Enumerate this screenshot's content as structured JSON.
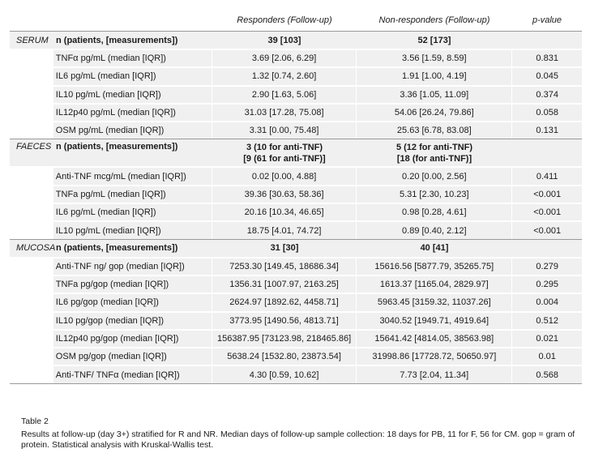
{
  "header": {
    "col2": "Responders (Follow-up)",
    "col3": "Non-responders (Follow-up)",
    "col4": "p-value"
  },
  "groups": [
    {
      "name": "SERUM",
      "n_label": "n (patients, [measurements])",
      "n_resp": [
        "39 [103]"
      ],
      "n_nonresp": [
        "52 [173]"
      ],
      "rows": [
        {
          "label": "TNFα pg/mL (median [IQR])",
          "resp": "3.69 [2.06, 6.29]",
          "nonresp": "3.56 [1.59, 8.59]",
          "p": "0.831"
        },
        {
          "label": "IL6 pg/mL (median [IQR])",
          "resp": "1.32 [0.74, 2.60]",
          "nonresp": "1.91 [1.00, 4.19]",
          "p": "0.045"
        },
        {
          "label": "IL10 pg/mL (median [IQR])",
          "resp": "2.90 [1.63, 5.06]",
          "nonresp": "3.36 [1.05, 11.09]",
          "p": "0.374"
        },
        {
          "label": "IL12p40 pg/mL (median [IQR])",
          "resp": "31.03 [17.28, 75.08]",
          "nonresp": "54.06 [26.24, 79.86]",
          "p": "0.058"
        },
        {
          "label": "OSM pg/mL (median [IQR])",
          "resp": "3.31 [0.00, 75.48]",
          "nonresp": "25.63 [6.78, 83.08]",
          "p": "0.131"
        }
      ]
    },
    {
      "name": "FAECES",
      "n_label": "n (patients, [measurements])",
      "n_resp": [
        "3 (10 for anti-TNF)",
        "[9 (61 for anti-TNF)]"
      ],
      "n_nonresp": [
        "5 (12 for anti-TNF)",
        "[18 (for anti-TNF)]"
      ],
      "rows": [
        {
          "label": "Anti-TNF mcg/mL (median [IQR])",
          "resp": "0.02 [0.00, 4.88]",
          "nonresp": "0.20 [0.00, 2.56]",
          "p": "0.411"
        },
        {
          "label": "TNFa pg/mL (median [IQR])",
          "resp": "39.36 [30.63, 58.36]",
          "nonresp": "5.31 [2.30, 10.23]",
          "p": "<0.001"
        },
        {
          "label": "IL6 pg/mL (median [IQR])",
          "resp": "20.16 [10.34, 46.65]",
          "nonresp": "0.98 [0.28, 4.61]",
          "p": "<0.001"
        },
        {
          "label": "IL10 pg/mL (median [IQR])",
          "resp": "18.75 [4.01, 74.72]",
          "nonresp": "0.89 [0.40, 2.12]",
          "p": "<0.001"
        }
      ]
    },
    {
      "name": "MUCOSA",
      "n_label": "n (patients, [measurements])",
      "n_resp": [
        "31 [30]"
      ],
      "n_nonresp": [
        "40 [41]"
      ],
      "rows": [
        {
          "label": "Anti-TNF ng/ gop (median [IQR])",
          "resp": "7253.30 [149.45, 18686.34]",
          "nonresp": "15616.56 [5877.79, 35265.75]",
          "p": "0.279"
        },
        {
          "label": "TNFa pg/gop (median [IQR])",
          "resp": "1356.31 [1007.97, 2163.25]",
          "nonresp": "1613.37 [1165.04, 2829.97]",
          "p": "0.295"
        },
        {
          "label": "IL6 pg/gop (median [IQR])",
          "resp": "2624.97 [1892.62, 4458.71]",
          "nonresp": "5963.45 [3159.32, 11037.26]",
          "p": "0.004"
        },
        {
          "label": "IL10 pg/gop (median [IQR])",
          "resp": "3773.95 [1490.56, 4813.71]",
          "nonresp": "3040.52 [1949.71, 4919.64]",
          "p": "0.512"
        },
        {
          "label": "IL12p40 pg/gop (median [IQR])",
          "resp": "156387.95 [73123.98, 218465.86]",
          "nonresp": "15641.42 [4814.05, 38563.98]",
          "p": "0.021"
        },
        {
          "label": "OSM pg/gop (median [IQR])",
          "resp": "5638.24 [1532.80, 23873.54]",
          "nonresp": "31998.86 [17728.72, 50650.97]",
          "p": "0.01"
        },
        {
          "label": "Anti-TNF/ TNFα  (median [IQR])",
          "resp": "4.30 [0.59, 10.62]",
          "nonresp": "7.73 [2.04, 11.34]",
          "p": "0.568"
        }
      ]
    }
  ],
  "caption": {
    "title": "Table 2",
    "text": "Results at follow-up (day 3+) stratified for R and NR. Median days of follow-up sample collection: 18 days for PB, 11 for F, 56 for CM. gop = gram of protein. Statistical analysis with Kruskal-Wallis test."
  }
}
